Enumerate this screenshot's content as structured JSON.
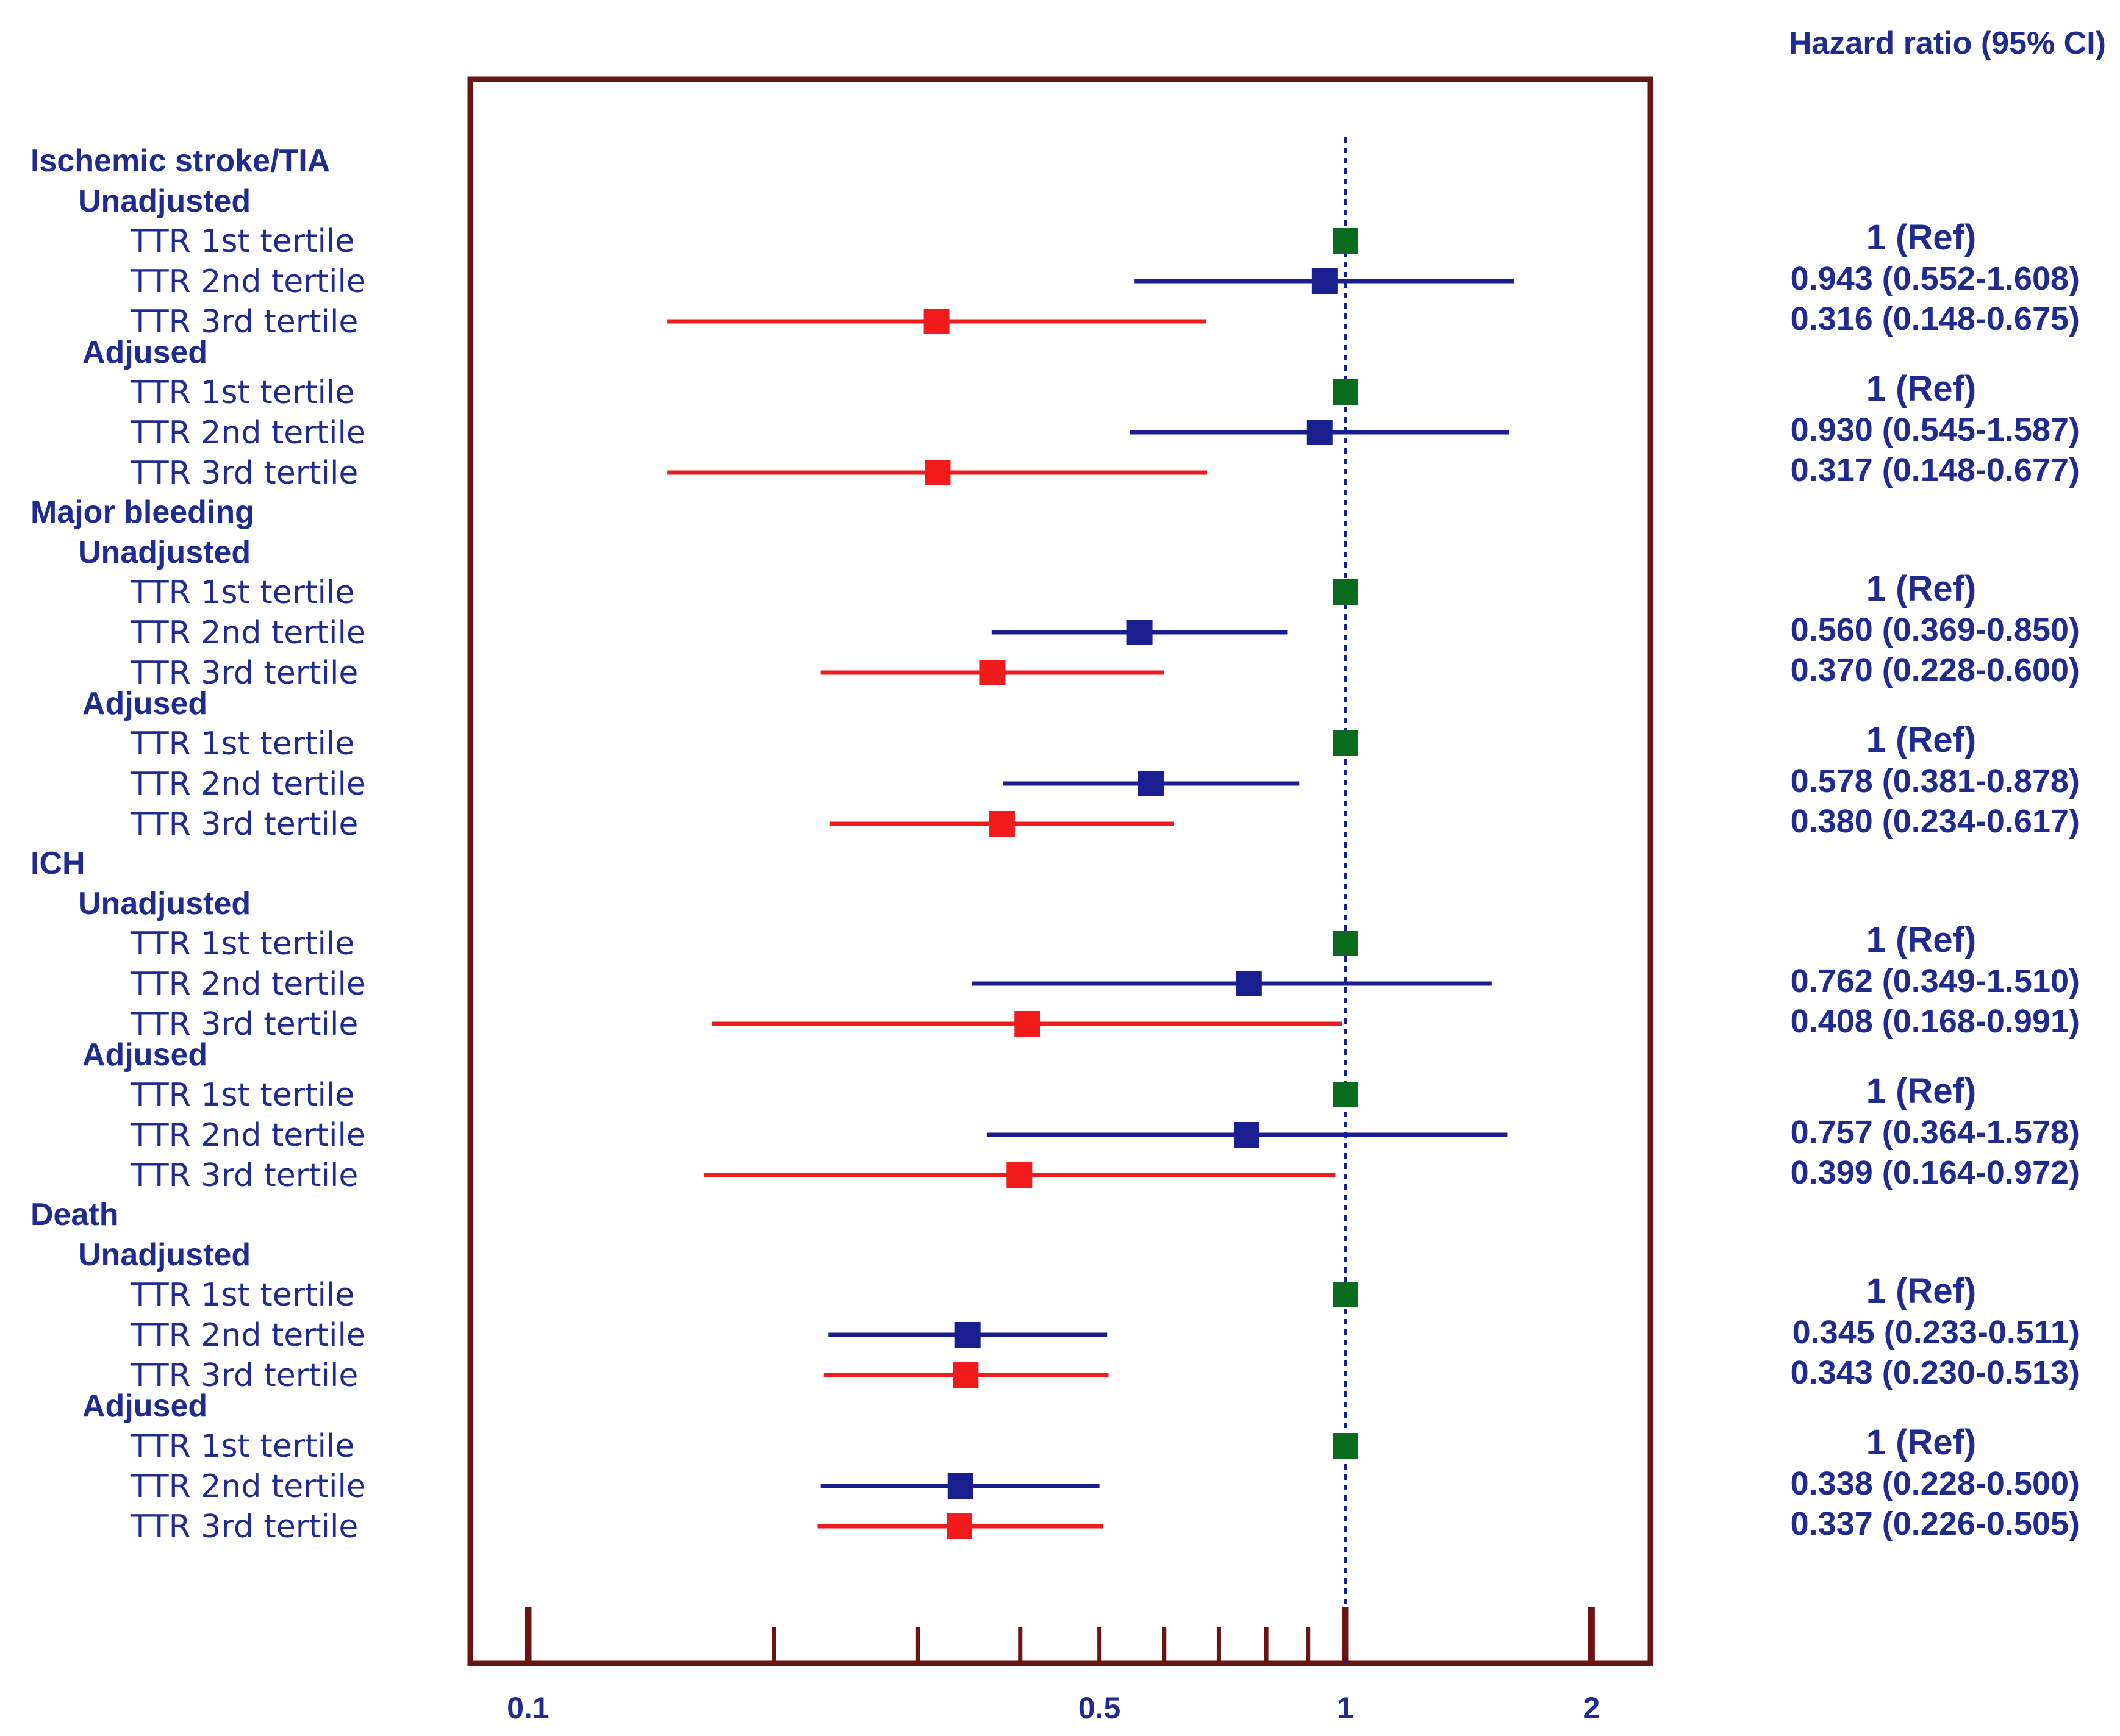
{
  "chart_data": {
    "type": "forest",
    "scale": "log",
    "xlim": [
      0.085,
      2.7
    ],
    "x_ticks": [
      {
        "value": 0.1,
        "label": "0.1",
        "major": true
      },
      {
        "value": 0.2,
        "label": "",
        "major": false
      },
      {
        "value": 0.3,
        "label": "",
        "major": false
      },
      {
        "value": 0.4,
        "label": "",
        "major": false
      },
      {
        "value": 0.5,
        "label": "0.5",
        "major": false
      },
      {
        "value": 0.6,
        "label": "",
        "major": false
      },
      {
        "value": 0.7,
        "label": "",
        "major": false
      },
      {
        "value": 0.8,
        "label": "",
        "major": false
      },
      {
        "value": 0.9,
        "label": "",
        "major": false
      },
      {
        "value": 1,
        "label": "1",
        "major": true
      },
      {
        "value": 2,
        "label": "2",
        "major": true
      }
    ],
    "reference_line": 1,
    "column_header": "Hazard ratio (95% CI)",
    "colors": {
      "ref": "#0b6b1c",
      "second": "#1a1f8f",
      "third": "#f21b1b",
      "frame": "#6b1414",
      "text": "#1f2b8f"
    },
    "outcomes": [
      {
        "name": "Ischemic stroke/TIA",
        "models": [
          {
            "name": "Unadjusted",
            "rows": [
              {
                "label": "TTR 1st tertile",
                "hr": 1,
                "lo": null,
                "hi": null,
                "text": "1 (Ref)",
                "group": "ref"
              },
              {
                "label": "TTR 2nd tertile",
                "hr": 0.943,
                "lo": 0.552,
                "hi": 1.608,
                "text": "0.943 (0.552-1.608)",
                "group": "second"
              },
              {
                "label": "TTR 3rd tertile",
                "hr": 0.316,
                "lo": 0.148,
                "hi": 0.675,
                "text": "0.316 (0.148-0.675)",
                "group": "third"
              }
            ]
          },
          {
            "name": "Adjused",
            "rows": [
              {
                "label": "TTR 1st tertile",
                "hr": 1,
                "lo": null,
                "hi": null,
                "text": "1 (Ref)",
                "group": "ref"
              },
              {
                "label": "TTR 2nd tertile",
                "hr": 0.93,
                "lo": 0.545,
                "hi": 1.587,
                "text": "0.930 (0.545-1.587)",
                "group": "second"
              },
              {
                "label": "TTR 3rd tertile",
                "hr": 0.317,
                "lo": 0.148,
                "hi": 0.677,
                "text": "0.317 (0.148-0.677)",
                "group": "third"
              }
            ]
          }
        ]
      },
      {
        "name": "Major bleeding",
        "models": [
          {
            "name": "Unadjusted",
            "rows": [
              {
                "label": "TTR 1st tertile",
                "hr": 1,
                "lo": null,
                "hi": null,
                "text": "1 (Ref)",
                "group": "ref"
              },
              {
                "label": "TTR 2nd tertile",
                "hr": 0.56,
                "lo": 0.369,
                "hi": 0.85,
                "text": "0.560 (0.369-0.850)",
                "group": "second"
              },
              {
                "label": "TTR 3rd tertile",
                "hr": 0.37,
                "lo": 0.228,
                "hi": 0.6,
                "text": "0.370 (0.228-0.600)",
                "group": "third"
              }
            ]
          },
          {
            "name": "Adjused",
            "rows": [
              {
                "label": "TTR 1st tertile",
                "hr": 1,
                "lo": null,
                "hi": null,
                "text": "1 (Ref)",
                "group": "ref"
              },
              {
                "label": "TTR 2nd tertile",
                "hr": 0.578,
                "lo": 0.381,
                "hi": 0.878,
                "text": "0.578 (0.381-0.878)",
                "group": "second"
              },
              {
                "label": "TTR 3rd tertile",
                "hr": 0.38,
                "lo": 0.234,
                "hi": 0.617,
                "text": "0.380 (0.234-0.617)",
                "group": "third"
              }
            ]
          }
        ]
      },
      {
        "name": "ICH",
        "models": [
          {
            "name": "Unadjusted",
            "rows": [
              {
                "label": "TTR 1st tertile",
                "hr": 1,
                "lo": null,
                "hi": null,
                "text": "1 (Ref)",
                "group": "ref"
              },
              {
                "label": "TTR 2nd tertile",
                "hr": 0.762,
                "lo": 0.349,
                "hi": 1.51,
                "text": "0.762 (0.349-1.510)",
                "group": "second"
              },
              {
                "label": "TTR 3rd tertile",
                "hr": 0.408,
                "lo": 0.168,
                "hi": 0.991,
                "text": "0.408 (0.168-0.991)",
                "group": "third"
              }
            ]
          },
          {
            "name": "Adjused",
            "rows": [
              {
                "label": "TTR 1st tertile",
                "hr": 1,
                "lo": null,
                "hi": null,
                "text": "1 (Ref)",
                "group": "ref"
              },
              {
                "label": "TTR 2nd tertile",
                "hr": 0.757,
                "lo": 0.364,
                "hi": 1.578,
                "text": "0.757 (0.364-1.578)",
                "group": "second"
              },
              {
                "label": "TTR 3rd tertile",
                "hr": 0.399,
                "lo": 0.164,
                "hi": 0.972,
                "text": "0.399 (0.164-0.972)",
                "group": "third"
              }
            ]
          }
        ]
      },
      {
        "name": "Death",
        "models": [
          {
            "name": "Unadjusted",
            "rows": [
              {
                "label": "TTR 1st tertile",
                "hr": 1,
                "lo": null,
                "hi": null,
                "text": "1 (Ref)",
                "group": "ref"
              },
              {
                "label": "TTR 2nd tertile",
                "hr": 0.345,
                "lo": 0.233,
                "hi": 0.511,
                "text": "0.345 (0.233-0.511)",
                "group": "second"
              },
              {
                "label": "TTR 3rd tertile",
                "hr": 0.343,
                "lo": 0.23,
                "hi": 0.513,
                "text": "0.343 (0.230-0.513)",
                "group": "third"
              }
            ]
          },
          {
            "name": "Adjused",
            "rows": [
              {
                "label": "TTR 1st tertile",
                "hr": 1,
                "lo": null,
                "hi": null,
                "text": "1 (Ref)",
                "group": "ref"
              },
              {
                "label": "TTR 2nd tertile",
                "hr": 0.338,
                "lo": 0.228,
                "hi": 0.5,
                "text": "0.338 (0.228-0.500)",
                "group": "second"
              },
              {
                "label": "TTR 3rd tertile",
                "hr": 0.337,
                "lo": 0.226,
                "hi": 0.505,
                "text": "0.337 (0.226-0.505)",
                "group": "third"
              }
            ]
          }
        ]
      }
    ]
  }
}
